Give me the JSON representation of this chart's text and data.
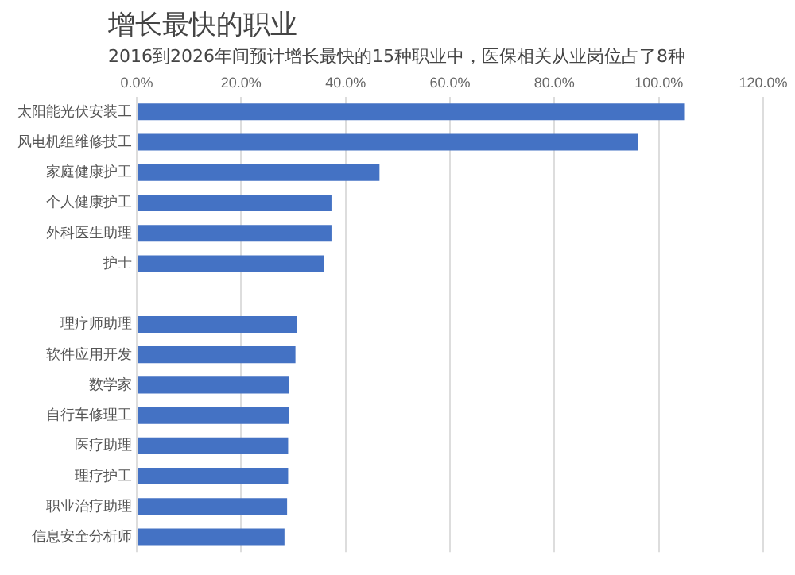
{
  "chart_data": {
    "type": "bar",
    "orientation": "horizontal",
    "title": "增长最快的职业",
    "subtitle": "2016到2026年间预计增长最快的15种职业中，医保相关从业岗位占了8种",
    "categories": [
      "太阳能光伏安装工",
      "风电机组维修技工",
      "家庭健康护工",
      "个人健康护工",
      "外科医生助理",
      "护士",
      null,
      "理疗师助理",
      "软件应用开发",
      "数学家",
      "自行车修理工",
      "医疗助理",
      "理疗护工",
      "职业治疗助理",
      "信息安全分析师"
    ],
    "values": [
      105,
      96,
      46.5,
      37.3,
      37.3,
      35.8,
      null,
      30.7,
      30.4,
      29.2,
      29.2,
      29,
      29,
      28.8,
      28.3
    ],
    "color": "#4472c4",
    "xlim": [
      0,
      120
    ],
    "xticks": [
      {
        "value": 0,
        "label": "0.0%"
      },
      {
        "value": 20,
        "label": "20.0%"
      },
      {
        "value": 40,
        "label": "40.0%"
      },
      {
        "value": 60,
        "label": "60.0%"
      },
      {
        "value": 80,
        "label": "80.0%"
      },
      {
        "value": 100,
        "label": "100.0%"
      },
      {
        "value": 120,
        "label": "120.0%"
      }
    ],
    "grid": "x"
  }
}
